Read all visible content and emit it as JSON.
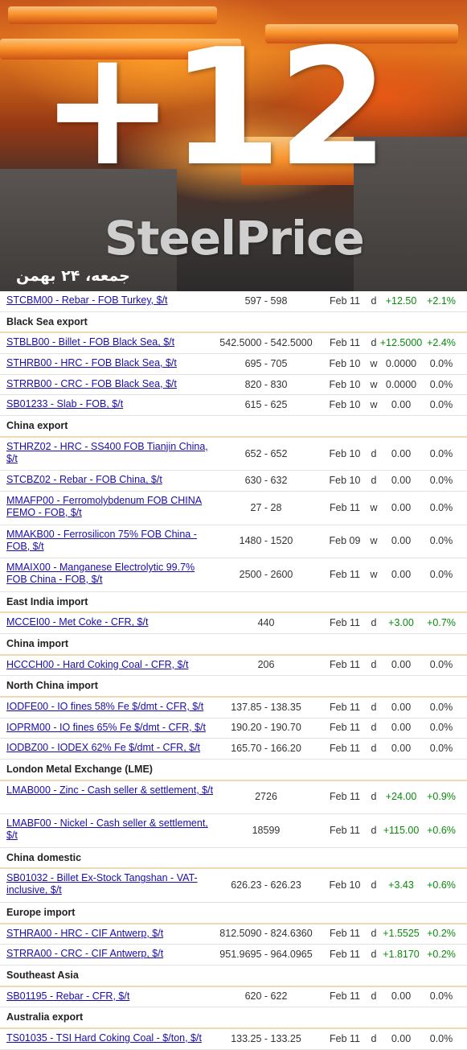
{
  "banner": {
    "big_number": "+12",
    "brand": "SteelPrice",
    "date_fa": "جمعه، ۲۴ بهمن"
  },
  "colors": {
    "positive": "#0a8a0a",
    "link": "#1a0dab",
    "section_rule": "#f0d9b5"
  },
  "rows": [
    {
      "kind": "data",
      "name": "STCBM00 - Rebar - FOB Turkey, $/t",
      "price": "597 - 598",
      "date": "Feb 11",
      "freq": "d",
      "change": "+12.50",
      "pct": "+2.1%",
      "pos": true
    },
    {
      "kind": "section",
      "title": "Black Sea export"
    },
    {
      "kind": "data",
      "name": "STBLB00 - Billet - FOB Black Sea, $/t",
      "price": "542.5000 - 542.5000",
      "date": "Feb 11",
      "freq": "d",
      "change": "+12.5000",
      "pct": "+2.4%",
      "pos": true
    },
    {
      "kind": "data",
      "name": "STHRB00 - HRC - FOB Black Sea, $/t",
      "price": "695 - 705",
      "date": "Feb 10",
      "freq": "w",
      "change": "0.0000",
      "pct": "0.0%",
      "pos": false
    },
    {
      "kind": "data",
      "name": "STRRB00 - CRC - FOB Black Sea, $/t",
      "price": "820 - 830",
      "date": "Feb 10",
      "freq": "w",
      "change": "0.0000",
      "pct": "0.0%",
      "pos": false
    },
    {
      "kind": "data",
      "name": "SB01233 - Slab - FOB, $/t",
      "price": "615 - 625",
      "date": "Feb 10",
      "freq": "w",
      "change": "0.00",
      "pct": "0.0%",
      "pos": false
    },
    {
      "kind": "section",
      "title": "China export"
    },
    {
      "kind": "data",
      "name": "STHRZ02 - HRC - SS400 FOB Tianjin China, $/t",
      "price": "652 - 652",
      "date": "Feb 10",
      "freq": "d",
      "change": "0.00",
      "pct": "0.0%",
      "pos": false,
      "tall": true
    },
    {
      "kind": "data",
      "name": "STCBZ02 - Rebar - FOB China, $/t",
      "price": "630 - 632",
      "date": "Feb 10",
      "freq": "d",
      "change": "0.00",
      "pct": "0.0%",
      "pos": false
    },
    {
      "kind": "data",
      "name": "MMAFP00 - Ferromolybdenum FOB CHINA FEMO - FOB, $/t",
      "price": "27 - 28",
      "date": "Feb 11",
      "freq": "w",
      "change": "0.00",
      "pct": "0.0%",
      "pos": false,
      "tall": true
    },
    {
      "kind": "data",
      "name": "MMAKB00 - Ferrosilicon 75% FOB China - FOB, $/t",
      "price": "1480 - 1520",
      "date": "Feb 09",
      "freq": "w",
      "change": "0.00",
      "pct": "0.0%",
      "pos": false,
      "tall": true
    },
    {
      "kind": "data",
      "name": "MMAIX00 - Manganese Electrolytic 99.7% FOB China - FOB, $/t",
      "price": "2500 - 2600",
      "date": "Feb 11",
      "freq": "w",
      "change": "0.00",
      "pct": "0.0%",
      "pos": false,
      "tall": true
    },
    {
      "kind": "section",
      "title": "East India import"
    },
    {
      "kind": "data",
      "name": "MCCEI00 - Met Coke - CFR, $/t",
      "price": "440",
      "date": "Feb 11",
      "freq": "d",
      "change": "+3.00",
      "pct": "+0.7%",
      "pos": true
    },
    {
      "kind": "section",
      "title": "China import"
    },
    {
      "kind": "data",
      "name": "HCCCH00 - Hard Coking Coal - CFR, $/t",
      "price": "206",
      "date": "Feb 11",
      "freq": "d",
      "change": "0.00",
      "pct": "0.0%",
      "pos": false
    },
    {
      "kind": "section",
      "title": "North China import"
    },
    {
      "kind": "data",
      "name": "IODFE00 - IO fines 58% Fe $/dmt - CFR, $/t",
      "price": "137.85 - 138.35",
      "date": "Feb 11",
      "freq": "d",
      "change": "0.00",
      "pct": "0.0%",
      "pos": false
    },
    {
      "kind": "data",
      "name": "IOPRM00 - IO fines 65% Fe $/dmt - CFR, $/t",
      "price": "190.20 - 190.70",
      "date": "Feb 11",
      "freq": "d",
      "change": "0.00",
      "pct": "0.0%",
      "pos": false
    },
    {
      "kind": "data",
      "name": "IODBZ00 - IODEX 62% Fe $/dmt - CFR, $/t",
      "price": "165.70 - 166.20",
      "date": "Feb 11",
      "freq": "d",
      "change": "0.00",
      "pct": "0.0%",
      "pos": false
    },
    {
      "kind": "section",
      "title": "London Metal Exchange (LME)"
    },
    {
      "kind": "data",
      "name": "LMAB000 - Zinc - Cash seller & settlement, $/t",
      "price": "2726",
      "date": "Feb 11",
      "freq": "d",
      "change": "+24.00",
      "pct": "+0.9%",
      "pos": true,
      "tall": true
    },
    {
      "kind": "data",
      "name": "LMABF00 - Nickel - Cash seller & settlement, $/t",
      "price": "18599",
      "date": "Feb 11",
      "freq": "d",
      "change": "+115.00",
      "pct": "+0.6%",
      "pos": true,
      "tall": true
    },
    {
      "kind": "section",
      "title": "China domestic"
    },
    {
      "kind": "data",
      "name": "SB01032 - Billet Ex-Stock Tangshan - VAT-inclusive, $/t",
      "price": "626.23 - 626.23",
      "date": "Feb 10",
      "freq": "d",
      "change": "+3.43",
      "pct": "+0.6%",
      "pos": true,
      "tall": true
    },
    {
      "kind": "section",
      "title": "Europe import"
    },
    {
      "kind": "data",
      "name": "STHRA00 - HRC - CIF Antwerp, $/t",
      "price": "812.5090 - 824.6360",
      "date": "Feb 11",
      "freq": "d",
      "change": "+1.5525",
      "pct": "+0.2%",
      "pos": true
    },
    {
      "kind": "data",
      "name": "STRRA00 - CRC - CIF Antwerp, $/t",
      "price": "951.9695 - 964.0965",
      "date": "Feb 11",
      "freq": "d",
      "change": "+1.8170",
      "pct": "+0.2%",
      "pos": true
    },
    {
      "kind": "section",
      "title": "Southeast Asia"
    },
    {
      "kind": "data",
      "name": "SB01195 - Rebar - CFR, $/t",
      "price": "620 - 622",
      "date": "Feb 11",
      "freq": "d",
      "change": "0.00",
      "pct": "0.0%",
      "pos": false
    },
    {
      "kind": "section",
      "title": "Australia export"
    },
    {
      "kind": "data",
      "name": "TS01035 - TSI Hard Coking Coal - $/ton, $/t",
      "price": "133.25 - 133.25",
      "date": "Feb 11",
      "freq": "d",
      "change": "0.00",
      "pct": "0.0%",
      "pos": false
    }
  ]
}
